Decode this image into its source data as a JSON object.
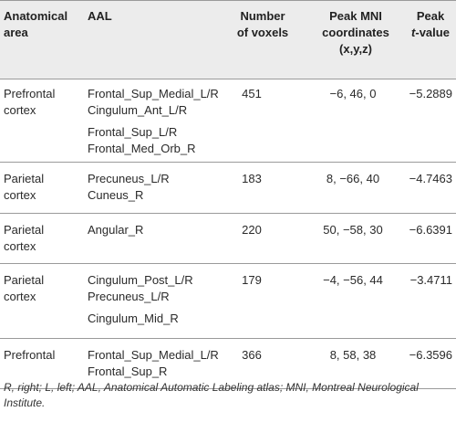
{
  "table": {
    "headers": {
      "area": [
        "Anatomical",
        "area"
      ],
      "aal": "AAL",
      "voxels": [
        "Number",
        "of voxels"
      ],
      "mni": [
        "Peak MNI",
        "coordinates",
        "(x,y,z)"
      ],
      "peak": [
        "Peak",
        "t",
        "-value"
      ]
    },
    "rows": [
      {
        "area": [
          "Prefrontal",
          "cortex"
        ],
        "aal_group1": [
          "Frontal_Sup_Medial_L/R",
          "Cingulum_Ant_L/R"
        ],
        "aal_group2": [
          "Frontal_Sup_L/R",
          "Frontal_Med_Orb_R"
        ],
        "voxels": "451",
        "mni": "−6, 46, 0",
        "peak_t": "−5.2889"
      },
      {
        "area": [
          "Parietal",
          "cortex"
        ],
        "aal_group1": [
          "Precuneus_L/R",
          "Cuneus_R"
        ],
        "aal_group2": [],
        "voxels": "183",
        "mni": "8, −66, 40",
        "peak_t": "−4.7463"
      },
      {
        "area": [
          "Parietal",
          "cortex"
        ],
        "aal_group1": [
          "Angular_R"
        ],
        "aal_group2": [],
        "voxels": "220",
        "mni": "50, −58, 30",
        "peak_t": "−6.6391"
      },
      {
        "area": [
          "Parietal",
          "cortex"
        ],
        "aal_group1": [
          "Cingulum_Post_L/R",
          "Precuneus_L/R"
        ],
        "aal_group2": [
          "Cingulum_Mid_R"
        ],
        "voxels": "179",
        "mni": "−4, −56, 44",
        "peak_t": "−3.4711"
      },
      {
        "area": [
          "Prefrontal"
        ],
        "aal_group1": [
          "Frontal_Sup_Medial_L/R",
          "Frontal_Sup_R"
        ],
        "aal_group2": [],
        "voxels": "366",
        "mni": "8, 58, 38",
        "peak_t": "−6.3596"
      }
    ]
  },
  "footnote": "R, right; L, left; AAL, Anatomical Automatic Labeling atlas; MNI, Montreal Neurological Institute."
}
